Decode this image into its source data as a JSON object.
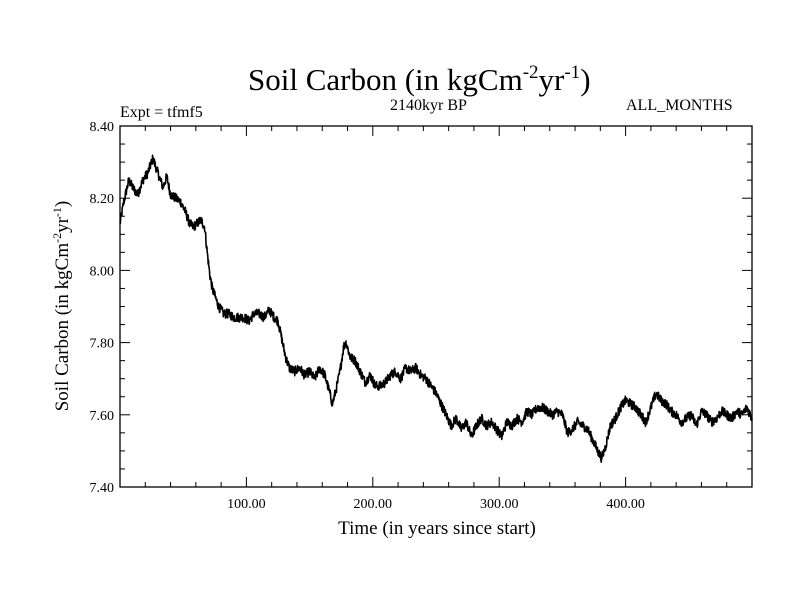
{
  "chart_data": {
    "type": "line",
    "title": "Soil Carbon (in kgCm",
    "title_units": {
      "exp1": "-2",
      "mid": "yr",
      "exp2": "-1",
      "close": ")"
    },
    "subtitle_left": "Expt = tfmf5",
    "subtitle_center": "2140kyr BP",
    "subtitle_right": "ALL_MONTHS",
    "xlabel": "Time (in years since start)",
    "ylabel": "Soil Carbon (in kgCm",
    "ylabel_units": {
      "exp1": "-2",
      "mid": "yr",
      "exp2": "-1",
      "close": ")"
    },
    "xlim": [
      0,
      500
    ],
    "ylim": [
      7.4,
      8.4
    ],
    "x_ticks": [
      {
        "value": 100,
        "label": "100.00"
      },
      {
        "value": 200,
        "label": "200.00"
      },
      {
        "value": 300,
        "label": "300.00"
      },
      {
        "value": 400,
        "label": "400.00"
      }
    ],
    "y_ticks": [
      {
        "value": 7.4,
        "label": "7.40"
      },
      {
        "value": 7.6,
        "label": "7.60"
      },
      {
        "value": 7.8,
        "label": "7.80"
      },
      {
        "value": 8.0,
        "label": "8.00"
      },
      {
        "value": 8.2,
        "label": "8.20"
      },
      {
        "value": 8.4,
        "label": "8.40"
      }
    ],
    "series": [
      {
        "name": "Soil Carbon",
        "color": "#000000",
        "x": [
          0,
          3,
          7,
          10,
          14,
          18,
          22,
          26,
          28,
          31,
          34,
          37,
          40,
          44,
          48,
          52,
          55,
          58,
          61,
          64,
          67,
          69,
          71,
          73,
          75,
          78,
          82,
          86,
          90,
          94,
          98,
          102,
          106,
          110,
          114,
          118,
          122,
          125,
          128,
          131,
          134,
          138,
          142,
          146,
          150,
          154,
          158,
          162,
          166,
          168,
          171,
          174,
          177,
          179,
          182,
          186,
          190,
          194,
          198,
          202,
          206,
          210,
          214,
          218,
          222,
          226,
          230,
          234,
          238,
          242,
          246,
          250,
          254,
          258,
          262,
          266,
          270,
          274,
          278,
          282,
          286,
          290,
          294,
          298,
          302,
          306,
          310,
          314,
          318,
          322,
          326,
          330,
          334,
          338,
          342,
          346,
          350,
          354,
          358,
          362,
          366,
          370,
          374,
          378,
          381,
          384,
          388,
          392,
          396,
          400,
          404,
          408,
          412,
          416,
          420,
          424,
          428,
          432,
          436,
          440,
          444,
          448,
          452,
          456,
          460,
          464,
          468,
          472,
          476,
          480,
          484,
          488,
          492,
          496,
          500
        ],
        "values": [
          8.13,
          8.19,
          8.25,
          8.23,
          8.21,
          8.25,
          8.27,
          8.31,
          8.29,
          8.26,
          8.23,
          8.26,
          8.21,
          8.2,
          8.19,
          8.16,
          8.13,
          8.12,
          8.13,
          8.14,
          8.12,
          8.05,
          7.99,
          7.95,
          7.93,
          7.9,
          7.88,
          7.88,
          7.87,
          7.87,
          7.87,
          7.86,
          7.88,
          7.88,
          7.87,
          7.89,
          7.87,
          7.86,
          7.81,
          7.76,
          7.73,
          7.72,
          7.73,
          7.71,
          7.72,
          7.7,
          7.73,
          7.71,
          7.66,
          7.63,
          7.67,
          7.72,
          7.79,
          7.8,
          7.76,
          7.75,
          7.72,
          7.69,
          7.71,
          7.68,
          7.68,
          7.69,
          7.71,
          7.72,
          7.7,
          7.73,
          7.72,
          7.73,
          7.71,
          7.7,
          7.68,
          7.66,
          7.63,
          7.6,
          7.57,
          7.59,
          7.56,
          7.58,
          7.54,
          7.57,
          7.59,
          7.57,
          7.58,
          7.56,
          7.54,
          7.58,
          7.57,
          7.59,
          7.58,
          7.61,
          7.6,
          7.62,
          7.62,
          7.61,
          7.6,
          7.61,
          7.6,
          7.55,
          7.56,
          7.58,
          7.57,
          7.56,
          7.53,
          7.5,
          7.48,
          7.51,
          7.57,
          7.59,
          7.62,
          7.64,
          7.63,
          7.62,
          7.6,
          7.58,
          7.62,
          7.66,
          7.64,
          7.63,
          7.61,
          7.6,
          7.58,
          7.59,
          7.6,
          7.57,
          7.61,
          7.6,
          7.58,
          7.59,
          7.61,
          7.6,
          7.59,
          7.61,
          7.6,
          7.62,
          7.59
        ]
      }
    ]
  }
}
